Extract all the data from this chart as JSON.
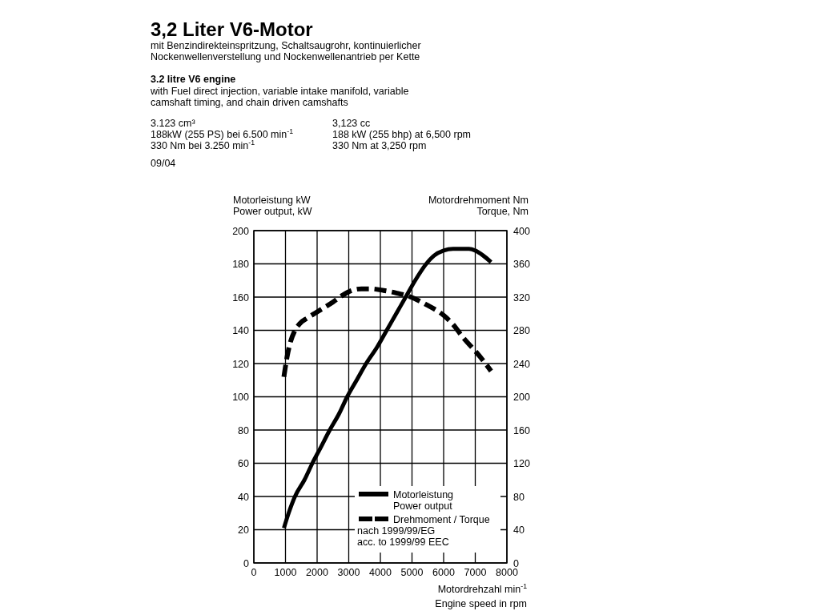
{
  "chart_data": {
    "type": "line",
    "title": "3,2 Liter V6-Motor",
    "subtitle": "mit Benzindirekteinspritzung, Schaltsaugrohr, kontinuierlicher\nNockenwellenverstellung und Nockenwellenantrieb per Kette",
    "annotations": [
      "3.2 litre V6 engine",
      "with Fuel direct injection, variable intake manifold, variable\ncamshaft timing, and chain driven camshafts",
      "3.123 cm³\n188kW (255 PS) bei 6.500 min$^{-1}$\n330 Nm bei 3.250  min$^{-1}$",
      "3,123 cc\n188 kW (255 bhp) at 6,500 rpm\n330 Nm at 3,250 rpm",
      "09/04",
      "nach 1999/99/EG\nacc. to 1999/99 EEC"
    ],
    "xlabel": "Motordrehzahl min$^{-1}$\nEngine speed in rpm",
    "ylabel": "Motorleistung kW\nPower output, kW",
    "y2label": "Motordrehmoment Nm\nTorque, Nm",
    "xlim": [
      0,
      8000
    ],
    "xticks": [
      0,
      1000,
      2000,
      3000,
      4000,
      5000,
      6000,
      7000,
      8000
    ],
    "ylim": [
      0,
      200
    ],
    "yticks": [
      0,
      20,
      40,
      60,
      80,
      100,
      120,
      140,
      160,
      180,
      200
    ],
    "y2lim": [
      0,
      400
    ],
    "y2ticks": [
      0,
      40,
      80,
      120,
      160,
      200,
      240,
      280,
      320,
      360,
      400
    ],
    "grid": true,
    "legend": "bottom right",
    "series": [
      {
        "name": "Motorleistung\nPower output",
        "color": "#000000",
        "line_style": "solid",
        "x": [
          950,
          1100,
          1300,
          1600,
          1850,
          2100,
          2400,
          2700,
          2950,
          3250,
          3550,
          3900,
          4200,
          4500,
          4800,
          5100,
          5450,
          5700,
          6000,
          6300,
          6500,
          6800,
          7000,
          7250,
          7500
        ],
        "values": [
          21,
          30,
          40,
          50,
          60,
          69,
          80,
          90,
          100,
          110,
          120,
          130,
          140,
          150,
          160,
          170,
          180,
          185,
          188,
          189,
          189,
          189,
          188,
          185,
          181
        ]
      },
      {
        "name": "Drehmoment / Torque",
        "color": "#000000",
        "line_style": "dashed",
        "axis": "y2",
        "x": [
          950,
          1050,
          1150,
          1300,
          1450,
          1700,
          1950,
          2500,
          2800,
          3100,
          3400,
          3700,
          4100,
          4500,
          4900,
          5450,
          6000,
          6300,
          6600,
          7000,
          7200,
          7500
        ],
        "values": [
          224,
          248,
          265,
          280,
          288,
          295,
          301,
          314,
          322,
          328,
          330,
          330,
          328,
          325,
          321,
          311,
          298,
          287,
          272,
          255,
          246,
          231
        ]
      }
    ]
  }
}
